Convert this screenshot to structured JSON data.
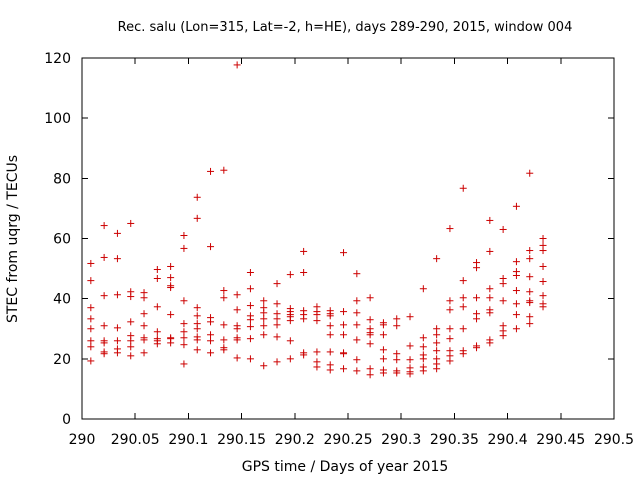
{
  "chart_data": {
    "type": "scatter",
    "title": "Rec. salu (Lon=315, Lat=-2, h=HE), days 289-290, 2015, window 004",
    "xlabel": "GPS time / Days of year 2015",
    "ylabel": "STEC from uqrg / TECUs",
    "xlim": [
      290,
      290.5
    ],
    "ylim": [
      0,
      120
    ],
    "xticks": [
      290,
      290.05,
      290.1,
      290.15,
      290.2,
      290.25,
      290.3,
      290.35,
      290.4,
      290.45,
      290.5
    ],
    "xtick_labels": [
      "290",
      "290.05",
      "290.1",
      "290.15",
      "290.2",
      "290.25",
      "290.3",
      "290.35",
      "290.4",
      "290.45",
      "290.5"
    ],
    "yticks": [
      0,
      20,
      40,
      60,
      80,
      100,
      120
    ],
    "ytick_labels": [
      "0",
      "20",
      "40",
      "60",
      "80",
      "100",
      "120"
    ],
    "grid": false,
    "marker": "+",
    "marker_color": "#cc0000",
    "points": [
      [
        290.0083,
        51.7
      ],
      [
        290.0083,
        46.0
      ],
      [
        290.0083,
        37.0
      ],
      [
        290.0083,
        33.3
      ],
      [
        290.0083,
        30.0
      ],
      [
        290.0083,
        26.0
      ],
      [
        290.0083,
        24.0
      ],
      [
        290.0083,
        19.3
      ],
      [
        290.0208,
        64.3
      ],
      [
        290.0208,
        53.7
      ],
      [
        290.0208,
        41.0
      ],
      [
        290.0208,
        31.0
      ],
      [
        290.0208,
        26.0
      ],
      [
        290.0208,
        25.3
      ],
      [
        290.0208,
        22.3
      ],
      [
        290.0208,
        21.7
      ],
      [
        290.0333,
        61.7
      ],
      [
        290.0333,
        53.3
      ],
      [
        290.0333,
        41.3
      ],
      [
        290.0333,
        30.3
      ],
      [
        290.0333,
        26.0
      ],
      [
        290.0333,
        23.3
      ],
      [
        290.0333,
        22.0
      ],
      [
        290.0458,
        65.0
      ],
      [
        290.0458,
        42.3
      ],
      [
        290.0458,
        40.7
      ],
      [
        290.0458,
        32.3
      ],
      [
        290.0458,
        27.7
      ],
      [
        290.0458,
        26.0
      ],
      [
        290.0458,
        24.0
      ],
      [
        290.0458,
        21.0
      ],
      [
        290.0583,
        42.0
      ],
      [
        290.0583,
        40.3
      ],
      [
        290.0583,
        35.0
      ],
      [
        290.0583,
        31.0
      ],
      [
        290.0583,
        27.0
      ],
      [
        290.0583,
        26.3
      ],
      [
        290.0583,
        22.0
      ],
      [
        290.0708,
        49.7
      ],
      [
        290.0708,
        46.7
      ],
      [
        290.0708,
        37.3
      ],
      [
        290.0708,
        29.0
      ],
      [
        290.0708,
        26.7
      ],
      [
        290.0708,
        26.0
      ],
      [
        290.0708,
        25.0
      ],
      [
        290.0833,
        50.7
      ],
      [
        290.0833,
        47.0
      ],
      [
        290.0833,
        44.3
      ],
      [
        290.0833,
        43.7
      ],
      [
        290.0833,
        34.7
      ],
      [
        290.0833,
        27.0
      ],
      [
        290.0833,
        26.7
      ],
      [
        290.0833,
        25.3
      ],
      [
        290.0958,
        61.0
      ],
      [
        290.0958,
        56.7
      ],
      [
        290.0958,
        39.3
      ],
      [
        290.0958,
        31.7
      ],
      [
        290.0958,
        29.0
      ],
      [
        290.0958,
        27.0
      ],
      [
        290.0958,
        24.7
      ],
      [
        290.0958,
        18.3
      ],
      [
        290.1083,
        73.7
      ],
      [
        290.1083,
        66.7
      ],
      [
        290.1083,
        37.0
      ],
      [
        290.1083,
        34.3
      ],
      [
        290.1083,
        31.7
      ],
      [
        290.1083,
        30.0
      ],
      [
        290.1083,
        27.3
      ],
      [
        290.1083,
        26.3
      ],
      [
        290.1083,
        23.0
      ],
      [
        290.1208,
        82.3
      ],
      [
        290.1208,
        57.3
      ],
      [
        290.1208,
        33.7
      ],
      [
        290.1208,
        32.3
      ],
      [
        290.1208,
        28.0
      ],
      [
        290.1208,
        26.0
      ],
      [
        290.1208,
        22.0
      ],
      [
        290.1333,
        82.7
      ],
      [
        290.1333,
        42.7
      ],
      [
        290.1333,
        40.3
      ],
      [
        290.1333,
        31.3
      ],
      [
        290.1333,
        26.3
      ],
      [
        290.1333,
        23.7
      ],
      [
        290.1333,
        23.0
      ],
      [
        290.1458,
        117.7
      ],
      [
        290.1458,
        41.3
      ],
      [
        290.1458,
        36.3
      ],
      [
        290.1458,
        31.0
      ],
      [
        290.1458,
        30.0
      ],
      [
        290.1458,
        27.0
      ],
      [
        290.1458,
        26.3
      ],
      [
        290.1458,
        20.3
      ],
      [
        290.1583,
        48.7
      ],
      [
        290.1583,
        43.3
      ],
      [
        290.1583,
        37.7
      ],
      [
        290.1583,
        34.3
      ],
      [
        290.1583,
        33.0
      ],
      [
        290.1583,
        30.7
      ],
      [
        290.1583,
        26.7
      ],
      [
        290.1583,
        20.0
      ],
      [
        290.1708,
        39.3
      ],
      [
        290.1708,
        37.0
      ],
      [
        290.1708,
        35.3
      ],
      [
        290.1708,
        33.3
      ],
      [
        290.1708,
        31.0
      ],
      [
        290.1708,
        28.0
      ],
      [
        290.1708,
        17.7
      ],
      [
        290.1833,
        45.0
      ],
      [
        290.1833,
        38.3
      ],
      [
        290.1833,
        35.0
      ],
      [
        290.1833,
        33.3
      ],
      [
        290.1833,
        31.3
      ],
      [
        290.1833,
        27.3
      ],
      [
        290.1833,
        19.0
      ],
      [
        290.1958,
        48.0
      ],
      [
        290.1958,
        36.7
      ],
      [
        290.1958,
        35.7
      ],
      [
        290.1958,
        34.7
      ],
      [
        290.1958,
        34.0
      ],
      [
        290.1958,
        32.7
      ],
      [
        290.1958,
        26.0
      ],
      [
        290.1958,
        20.0
      ],
      [
        290.2083,
        55.7
      ],
      [
        290.2083,
        48.7
      ],
      [
        290.2083,
        36.0
      ],
      [
        290.2083,
        34.7
      ],
      [
        290.2083,
        33.3
      ],
      [
        290.2083,
        22.0
      ],
      [
        290.2083,
        21.3
      ],
      [
        290.2208,
        37.3
      ],
      [
        290.2208,
        35.7
      ],
      [
        290.2208,
        34.7
      ],
      [
        290.2208,
        32.7
      ],
      [
        290.2208,
        22.3
      ],
      [
        290.2208,
        19.0
      ],
      [
        290.2208,
        17.3
      ],
      [
        290.2333,
        36.0
      ],
      [
        290.2333,
        35.0
      ],
      [
        290.2333,
        34.3
      ],
      [
        290.2333,
        31.0
      ],
      [
        290.2333,
        28.0
      ],
      [
        290.2333,
        22.3
      ],
      [
        290.2333,
        18.0
      ],
      [
        290.2333,
        16.3
      ],
      [
        290.2458,
        55.3
      ],
      [
        290.2458,
        35.7
      ],
      [
        290.2458,
        31.3
      ],
      [
        290.2458,
        28.0
      ],
      [
        290.2458,
        22.0
      ],
      [
        290.2458,
        21.7
      ],
      [
        290.2458,
        16.7
      ],
      [
        290.2583,
        48.3
      ],
      [
        290.2583,
        39.3
      ],
      [
        290.2583,
        35.3
      ],
      [
        290.2583,
        31.3
      ],
      [
        290.2583,
        26.3
      ],
      [
        290.2583,
        19.7
      ],
      [
        290.2583,
        16.0
      ],
      [
        290.2708,
        40.3
      ],
      [
        290.2708,
        33.0
      ],
      [
        290.2708,
        30.0
      ],
      [
        290.2708,
        28.7
      ],
      [
        290.2708,
        28.0
      ],
      [
        290.2708,
        25.0
      ],
      [
        290.2708,
        16.7
      ],
      [
        290.2708,
        14.7
      ],
      [
        290.2833,
        32.0
      ],
      [
        290.2833,
        31.3
      ],
      [
        290.2833,
        28.0
      ],
      [
        290.2833,
        23.0
      ],
      [
        290.2833,
        20.0
      ],
      [
        290.2833,
        16.3
      ],
      [
        290.2833,
        15.3
      ],
      [
        290.2958,
        33.3
      ],
      [
        290.2958,
        31.0
      ],
      [
        290.2958,
        21.7
      ],
      [
        290.2958,
        19.7
      ],
      [
        290.2958,
        16.0
      ],
      [
        290.2958,
        15.3
      ],
      [
        290.3083,
        34.0
      ],
      [
        290.3083,
        24.3
      ],
      [
        290.3083,
        19.7
      ],
      [
        290.3083,
        17.0
      ],
      [
        290.3083,
        15.7
      ],
      [
        290.3083,
        15.0
      ],
      [
        290.3208,
        43.3
      ],
      [
        290.3208,
        27.0
      ],
      [
        290.3208,
        24.0
      ],
      [
        290.3208,
        21.3
      ],
      [
        290.3208,
        20.0
      ],
      [
        290.3208,
        17.3
      ],
      [
        290.3208,
        16.0
      ],
      [
        290.3333,
        53.3
      ],
      [
        290.3333,
        30.0
      ],
      [
        290.3333,
        28.0
      ],
      [
        290.3333,
        25.3
      ],
      [
        290.3333,
        22.7
      ],
      [
        290.3333,
        20.0
      ],
      [
        290.3333,
        18.3
      ],
      [
        290.3333,
        16.7
      ],
      [
        290.3458,
        63.3
      ],
      [
        290.3458,
        39.3
      ],
      [
        290.3458,
        36.3
      ],
      [
        290.3458,
        30.0
      ],
      [
        290.3458,
        26.7
      ],
      [
        290.3458,
        22.7
      ],
      [
        290.3458,
        21.0
      ],
      [
        290.3458,
        19.3
      ],
      [
        290.3583,
        76.7
      ],
      [
        290.3583,
        46.0
      ],
      [
        290.3583,
        40.3
      ],
      [
        290.3583,
        37.3
      ],
      [
        290.3583,
        30.0
      ],
      [
        290.3583,
        22.7
      ],
      [
        290.3583,
        21.7
      ],
      [
        290.3708,
        52.0
      ],
      [
        290.3708,
        50.3
      ],
      [
        290.3708,
        40.3
      ],
      [
        290.3708,
        35.0
      ],
      [
        290.3708,
        33.3
      ],
      [
        290.3708,
        24.3
      ],
      [
        290.3708,
        23.7
      ],
      [
        290.3833,
        66.0
      ],
      [
        290.3833,
        55.7
      ],
      [
        290.3833,
        43.3
      ],
      [
        290.3833,
        40.3
      ],
      [
        290.3833,
        36.3
      ],
      [
        290.3833,
        35.3
      ],
      [
        290.3833,
        26.3
      ],
      [
        290.3833,
        25.3
      ],
      [
        290.3958,
        63.0
      ],
      [
        290.3958,
        46.7
      ],
      [
        290.3958,
        45.0
      ],
      [
        290.3958,
        39.3
      ],
      [
        290.3958,
        31.0
      ],
      [
        290.3958,
        29.3
      ],
      [
        290.3958,
        27.7
      ],
      [
        290.4083,
        70.7
      ],
      [
        290.4083,
        52.3
      ],
      [
        290.4083,
        49.0
      ],
      [
        290.4083,
        47.7
      ],
      [
        290.4083,
        42.7
      ],
      [
        290.4083,
        38.3
      ],
      [
        290.4083,
        34.7
      ],
      [
        290.4083,
        30.0
      ],
      [
        290.4208,
        81.7
      ],
      [
        290.4208,
        56.0
      ],
      [
        290.4208,
        53.3
      ],
      [
        290.4208,
        47.3
      ],
      [
        290.4208,
        42.3
      ],
      [
        290.4208,
        39.3
      ],
      [
        290.4208,
        38.7
      ],
      [
        290.4208,
        34.0
      ],
      [
        290.4208,
        31.7
      ],
      [
        290.4333,
        60.0
      ],
      [
        290.4333,
        57.7
      ],
      [
        290.4333,
        56.0
      ],
      [
        290.4333,
        50.7
      ],
      [
        290.4333,
        45.7
      ],
      [
        290.4333,
        41.0
      ],
      [
        290.4333,
        38.3
      ],
      [
        290.4333,
        37.3
      ]
    ]
  }
}
